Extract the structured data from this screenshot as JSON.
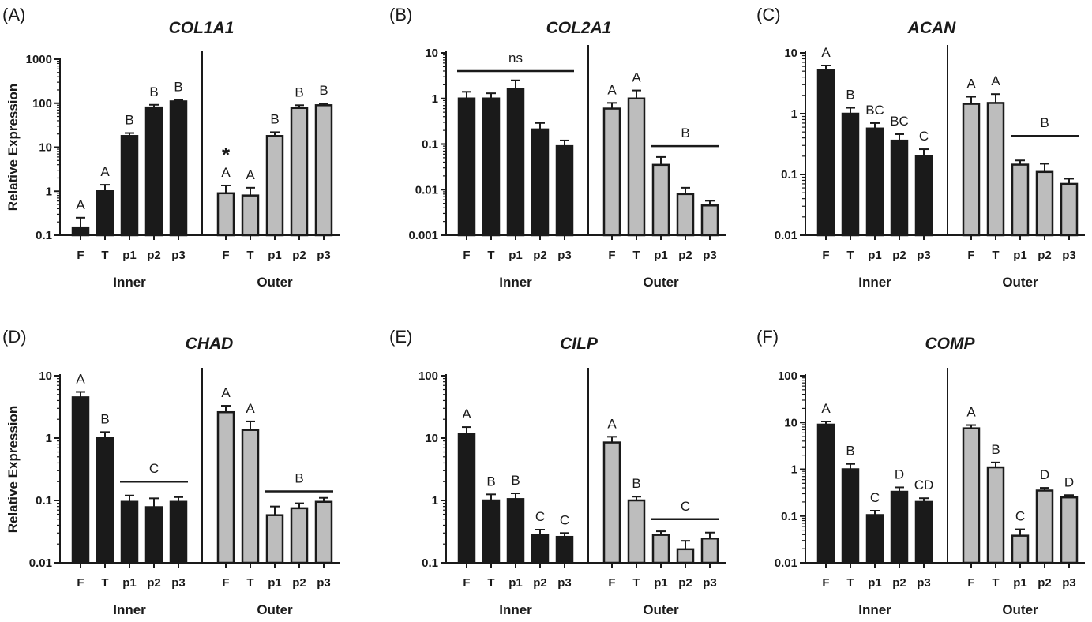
{
  "chart_data": [
    {
      "type": "bar",
      "panel_label": "(A)",
      "title": "COL1A1",
      "ylabel": "Relative Expression",
      "yscale": "log",
      "ylim": [
        0.1,
        1000
      ],
      "yticks": [
        "0.1",
        "1",
        "10",
        "100",
        "1000"
      ],
      "categories": [
        "F",
        "T",
        "p1",
        "p2",
        "p3"
      ],
      "groups": [
        "Inner",
        "Outer"
      ],
      "series": [
        {
          "name": "Inner",
          "color": "#1a1a1a",
          "values": [
            0.15,
            1.0,
            18,
            80,
            110
          ],
          "errors": [
            0.1,
            0.4,
            3,
            12,
            8
          ]
        },
        {
          "name": "Outer",
          "color": "#bdbdbd",
          "values": [
            0.9,
            0.8,
            18,
            78,
            90
          ],
          "errors": [
            0.45,
            0.4,
            4,
            12,
            8
          ]
        }
      ],
      "letters": {
        "Inner": [
          "A",
          "A",
          "B",
          "B",
          "B"
        ],
        "Outer": [
          "A",
          "A",
          "B",
          "B",
          "B"
        ]
      },
      "annotations": [
        {
          "text": "*",
          "group": "Outer",
          "index": 0
        }
      ],
      "brackets": []
    },
    {
      "type": "bar",
      "panel_label": "(B)",
      "title": "COL2A1",
      "ylabel": "",
      "yscale": "log",
      "ylim": [
        0.001,
        10
      ],
      "yticks": [
        "0.001",
        "0.01",
        "0.1",
        "1",
        "10"
      ],
      "categories": [
        "F",
        "T",
        "p1",
        "p2",
        "p3"
      ],
      "groups": [
        "Inner",
        "Outer"
      ],
      "series": [
        {
          "name": "Inner",
          "color": "#1a1a1a",
          "values": [
            1.0,
            1.0,
            1.6,
            0.21,
            0.09
          ],
          "errors": [
            0.4,
            0.3,
            0.9,
            0.08,
            0.03
          ]
        },
        {
          "name": "Outer",
          "color": "#bdbdbd",
          "values": [
            0.6,
            1.0,
            0.035,
            0.008,
            0.0045
          ],
          "errors": [
            0.2,
            0.5,
            0.017,
            0.003,
            0.0012
          ]
        }
      ],
      "letters": {
        "Inner": [
          "",
          "",
          "",
          "",
          ""
        ],
        "Outer": [
          "A",
          "A",
          "",
          "",
          ""
        ]
      },
      "annotations": [],
      "brackets": [
        {
          "group": "Inner",
          "from": 0,
          "to": 4,
          "y": 4,
          "label": "ns"
        },
        {
          "group": "Outer",
          "from": 2,
          "to": 4,
          "y": 0.09,
          "label": "B"
        }
      ]
    },
    {
      "type": "bar",
      "panel_label": "(C)",
      "title": "ACAN",
      "ylabel": "",
      "yscale": "log",
      "ylim": [
        0.01,
        10
      ],
      "yticks": [
        "0.01",
        "0.1",
        "1",
        "10"
      ],
      "categories": [
        "F",
        "T",
        "p1",
        "p2",
        "p3"
      ],
      "groups": [
        "Inner",
        "Outer"
      ],
      "series": [
        {
          "name": "Inner",
          "color": "#1a1a1a",
          "values": [
            5.2,
            1.0,
            0.57,
            0.36,
            0.2
          ],
          "errors": [
            1.0,
            0.25,
            0.13,
            0.1,
            0.06
          ]
        },
        {
          "name": "Outer",
          "color": "#bdbdbd",
          "values": [
            1.45,
            1.5,
            0.145,
            0.11,
            0.07
          ],
          "errors": [
            0.45,
            0.6,
            0.025,
            0.04,
            0.015
          ]
        }
      ],
      "letters": {
        "Inner": [
          "A",
          "B",
          "BC",
          "BC",
          "C"
        ],
        "Outer": [
          "A",
          "A",
          "",
          "",
          ""
        ]
      },
      "annotations": [],
      "brackets": [
        {
          "group": "Outer",
          "from": 2,
          "to": 4,
          "y": 0.43,
          "label": "B"
        }
      ]
    },
    {
      "type": "bar",
      "panel_label": "(D)",
      "title": "CHAD",
      "ylabel": "Relative Expression",
      "yscale": "log",
      "ylim": [
        0.01,
        10
      ],
      "yticks": [
        "0.01",
        "0.1",
        "1",
        "10"
      ],
      "categories": [
        "F",
        "T",
        "p1",
        "p2",
        "p3"
      ],
      "groups": [
        "Inner",
        "Outer"
      ],
      "series": [
        {
          "name": "Inner",
          "color": "#1a1a1a",
          "values": [
            4.5,
            1.0,
            0.095,
            0.078,
            0.095
          ],
          "errors": [
            1.0,
            0.25,
            0.025,
            0.03,
            0.018
          ]
        },
        {
          "name": "Outer",
          "color": "#bdbdbd",
          "values": [
            2.6,
            1.35,
            0.058,
            0.075,
            0.095
          ],
          "errors": [
            0.7,
            0.5,
            0.022,
            0.015,
            0.015
          ]
        }
      ],
      "letters": {
        "Inner": [
          "A",
          "B",
          "",
          "",
          ""
        ],
        "Outer": [
          "A",
          "A",
          "",
          "",
          ""
        ]
      },
      "annotations": [],
      "brackets": [
        {
          "group": "Inner",
          "from": 2,
          "to": 4,
          "y": 0.2,
          "label": "C"
        },
        {
          "group": "Outer",
          "from": 2,
          "to": 4,
          "y": 0.14,
          "label": "B"
        }
      ]
    },
    {
      "type": "bar",
      "panel_label": "(E)",
      "title": "CILP",
      "ylabel": "",
      "yscale": "log",
      "ylim": [
        0.1,
        100
      ],
      "yticks": [
        "0.1",
        "1",
        "10",
        "100"
      ],
      "categories": [
        "F",
        "T",
        "p1",
        "p2",
        "p3"
      ],
      "groups": [
        "Inner",
        "Outer"
      ],
      "series": [
        {
          "name": "Inner",
          "color": "#1a1a1a",
          "values": [
            11.5,
            1.0,
            1.05,
            0.28,
            0.26
          ],
          "errors": [
            3.5,
            0.25,
            0.25,
            0.06,
            0.04
          ]
        },
        {
          "name": "Outer",
          "color": "#bdbdbd",
          "values": [
            8.5,
            1.0,
            0.28,
            0.165,
            0.245
          ],
          "errors": [
            2.0,
            0.15,
            0.04,
            0.06,
            0.06
          ]
        }
      ],
      "letters": {
        "Inner": [
          "A",
          "B",
          "B",
          "C",
          "C"
        ],
        "Outer": [
          "A",
          "B",
          "",
          "",
          ""
        ]
      },
      "annotations": [],
      "brackets": [
        {
          "group": "Outer",
          "from": 2,
          "to": 4,
          "y": 0.5,
          "label": "C"
        }
      ]
    },
    {
      "type": "bar",
      "panel_label": "(F)",
      "title": "COMP",
      "ylabel": "",
      "yscale": "log",
      "ylim": [
        0.01,
        100
      ],
      "yticks": [
        "0.01",
        "0.1",
        "1",
        "10",
        "100"
      ],
      "categories": [
        "F",
        "T",
        "p1",
        "p2",
        "p3"
      ],
      "groups": [
        "Inner",
        "Outer"
      ],
      "series": [
        {
          "name": "Inner",
          "color": "#1a1a1a",
          "values": [
            9.0,
            1.0,
            0.105,
            0.33,
            0.2
          ],
          "errors": [
            1.5,
            0.3,
            0.025,
            0.08,
            0.04
          ]
        },
        {
          "name": "Outer",
          "color": "#bdbdbd",
          "values": [
            7.5,
            1.1,
            0.038,
            0.35,
            0.25
          ],
          "errors": [
            1.3,
            0.3,
            0.014,
            0.05,
            0.03
          ]
        }
      ],
      "letters": {
        "Inner": [
          "A",
          "B",
          "C",
          "D",
          "CD"
        ],
        "Outer": [
          "A",
          "B",
          "C",
          "D",
          "D"
        ]
      },
      "annotations": [],
      "brackets": []
    }
  ]
}
